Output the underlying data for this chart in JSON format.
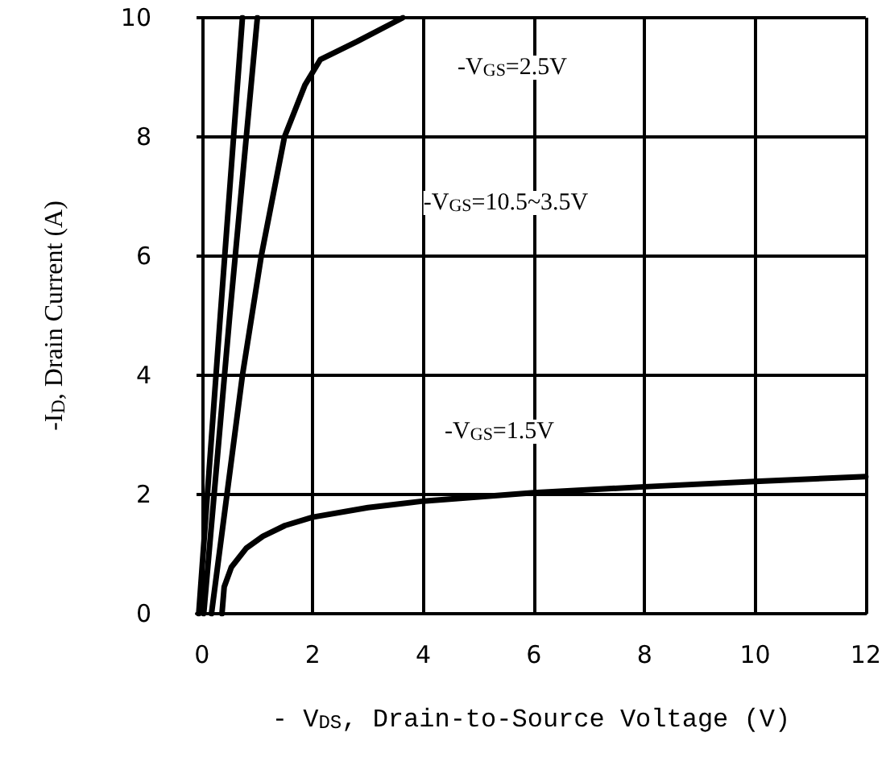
{
  "chart_data": {
    "type": "line",
    "xlabel": "- V$_{DS}$, Drain-to-Source Voltage (V)",
    "ylabel": "-I$_{D}$, Drain Current (A)",
    "xlim": [
      -0.1,
      12
    ],
    "xticks": [
      0,
      2,
      4,
      6,
      8,
      10,
      12
    ],
    "ylim": [
      0,
      10
    ],
    "yticks": [
      0,
      2,
      4,
      6,
      8,
      10
    ],
    "grid": true,
    "marker": "none",
    "line_style": "solid",
    "series": [
      {
        "color": "#000000",
        "x": [
          -0.06,
          0.33,
          0.73
        ],
        "values": [
          0,
          5,
          10
        ]
      },
      {
        "color": "#000000",
        "x": [
          0.03,
          0.5,
          1.0
        ],
        "values": [
          0,
          5,
          10
        ]
      },
      {
        "color": "#000000",
        "x": [
          0.17,
          0.45,
          0.73,
          1.07,
          1.49,
          1.86,
          2.14,
          2.8,
          3.63
        ],
        "values": [
          0,
          2,
          4,
          6,
          8,
          8.87,
          9.3,
          9.6,
          10
        ]
      },
      {
        "color": "#000000",
        "x": [
          0.36,
          0.4,
          0.53,
          0.8,
          1.1,
          1.5,
          2,
          3,
          4,
          6,
          8,
          10,
          12
        ],
        "values": [
          0,
          0.45,
          0.78,
          1.1,
          1.3,
          1.48,
          1.62,
          1.78,
          1.89,
          2.03,
          2.13,
          2.22,
          2.3
        ]
      }
    ],
    "annotations": [
      "-V$_{GS}$=2.5V",
      "-V$_{GS}$=10.5~3.5V",
      "-V$_{GS}$=1.5V"
    ]
  }
}
